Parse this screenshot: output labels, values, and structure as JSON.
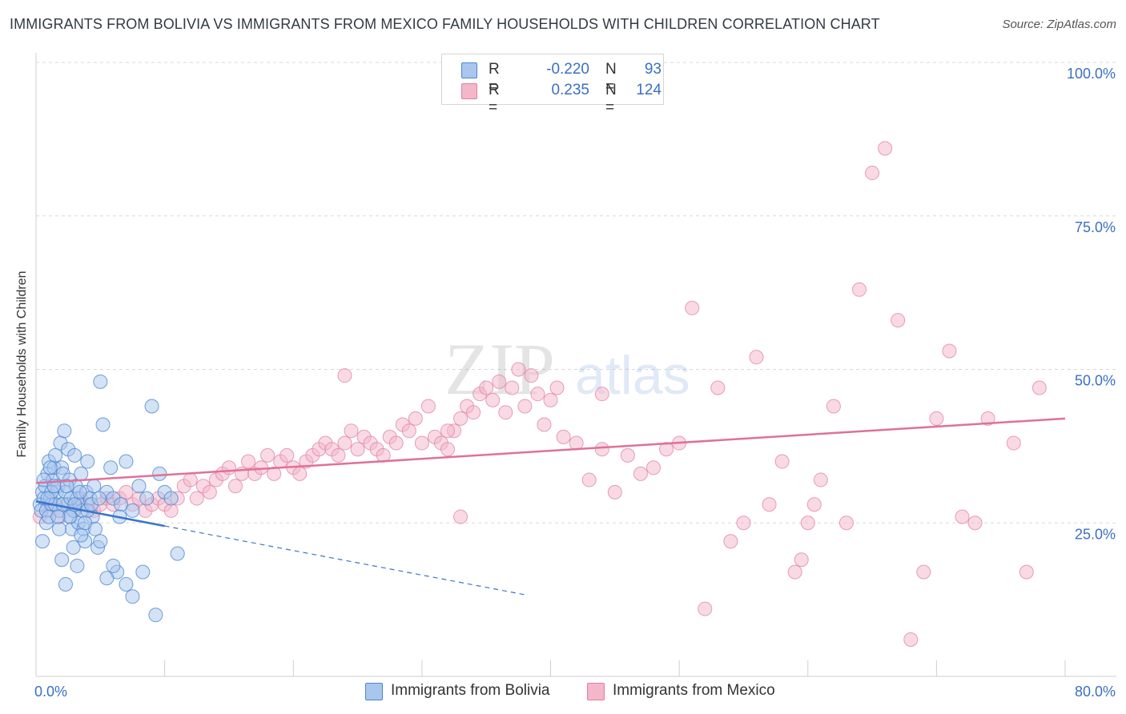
{
  "title": "IMMIGRANTS FROM BOLIVIA VS IMMIGRANTS FROM MEXICO FAMILY HOUSEHOLDS WITH CHILDREN CORRELATION CHART",
  "source": "Source: ZipAtlas.com",
  "watermark": {
    "zip": "ZIP",
    "atlas": "atlas"
  },
  "legend": {
    "bolivia": {
      "r_label": "R =",
      "r_value": "-0.220",
      "n_label": "N =",
      "n_value": "93"
    },
    "mexico": {
      "r_label": "R =",
      "r_value": "0.235",
      "n_label": "N =",
      "n_value": "124"
    }
  },
  "colors": {
    "bolivia_fill": "#a9c6ee",
    "bolivia_stroke": "#4a86d0",
    "bolivia_line": "#3a74cc",
    "mexico_fill": "#f4b6c9",
    "mexico_stroke": "#e07fa0",
    "mexico_line": "#e0709a",
    "tick_label": "#3a6fc4",
    "grid": "#d9d9d9"
  },
  "chart_data": {
    "type": "scatter",
    "title": "IMMIGRANTS FROM BOLIVIA VS IMMIGRANTS FROM MEXICO FAMILY HOUSEHOLDS WITH CHILDREN CORRELATION CHART",
    "xlabel": "",
    "ylabel": "Family Households with Children",
    "xlim": [
      0,
      80
    ],
    "ylim": [
      0,
      100
    ],
    "x_tick_labels": [
      "0.0%",
      "80.0%"
    ],
    "y_ticks": [
      25,
      50,
      75,
      100
    ],
    "y_tick_labels": [
      "25.0%",
      "50.0%",
      "75.0%",
      "100.0%"
    ],
    "legend_bottom": [
      "Immigrants from Bolivia",
      "Immigrants from Mexico"
    ],
    "series": [
      {
        "name": "Immigrants from Bolivia",
        "r": -0.22,
        "n": 93,
        "trend": {
          "x0": 0,
          "y0": 28.5,
          "x1": 10,
          "y1": 24.5,
          "dash_to_x": 38
        },
        "points": [
          [
            0.3,
            28
          ],
          [
            0.4,
            27
          ],
          [
            0.5,
            30
          ],
          [
            0.6,
            29
          ],
          [
            0.7,
            31
          ],
          [
            0.8,
            27
          ],
          [
            0.9,
            33
          ],
          [
            1,
            35
          ],
          [
            1.1,
            29
          ],
          [
            1.2,
            28
          ],
          [
            1.3,
            32
          ],
          [
            1.4,
            34
          ],
          [
            1.5,
            36
          ],
          [
            1.6,
            30
          ],
          [
            1.7,
            31
          ],
          [
            1.8,
            27
          ],
          [
            1.9,
            38
          ],
          [
            2,
            34
          ],
          [
            2.1,
            33
          ],
          [
            2.2,
            40
          ],
          [
            2.3,
            30
          ],
          [
            2.4,
            28
          ],
          [
            2.5,
            37
          ],
          [
            2.6,
            32
          ],
          [
            2.7,
            26
          ],
          [
            2.8,
            24
          ],
          [
            2.9,
            27
          ],
          [
            3,
            36
          ],
          [
            3.1,
            31
          ],
          [
            3.2,
            29
          ],
          [
            3.3,
            25
          ],
          [
            3.4,
            28
          ],
          [
            3.5,
            33
          ],
          [
            3.6,
            27
          ],
          [
            3.7,
            24
          ],
          [
            3.8,
            22
          ],
          [
            3.9,
            30
          ],
          [
            4,
            35
          ],
          [
            4.2,
            29
          ],
          [
            4.4,
            26
          ],
          [
            4.6,
            24
          ],
          [
            4.8,
            21
          ],
          [
            5,
            48
          ],
          [
            5.2,
            41
          ],
          [
            5.5,
            30
          ],
          [
            5.8,
            34
          ],
          [
            6,
            29
          ],
          [
            6.3,
            17
          ],
          [
            6.6,
            28
          ],
          [
            7,
            15
          ],
          [
            7.5,
            13
          ],
          [
            8,
            31
          ],
          [
            8.3,
            17
          ],
          [
            8.6,
            29
          ],
          [
            9,
            44
          ],
          [
            9.3,
            10
          ],
          [
            9.6,
            33
          ],
          [
            10,
            30
          ],
          [
            10.5,
            29
          ],
          [
            11,
            20
          ],
          [
            0.5,
            22
          ],
          [
            0.8,
            25
          ],
          [
            1,
            26
          ],
          [
            1.2,
            30
          ],
          [
            1.5,
            28
          ],
          [
            1.8,
            24
          ],
          [
            2,
            19
          ],
          [
            2.3,
            15
          ],
          [
            2.6,
            26
          ],
          [
            2.9,
            21
          ],
          [
            3.2,
            18
          ],
          [
            3.5,
            23
          ],
          [
            4,
            27
          ],
          [
            4.5,
            31
          ],
          [
            5,
            22
          ],
          [
            5.5,
            16
          ],
          [
            6,
            18
          ],
          [
            6.5,
            26
          ],
          [
            7,
            35
          ],
          [
            7.5,
            27
          ],
          [
            0.6,
            32
          ],
          [
            0.9,
            29
          ],
          [
            1.1,
            34
          ],
          [
            1.4,
            31
          ],
          [
            1.7,
            26
          ],
          [
            2.1,
            28
          ],
          [
            2.4,
            31
          ],
          [
            2.7,
            29
          ],
          [
            3,
            28
          ],
          [
            3.4,
            30
          ],
          [
            3.8,
            25
          ],
          [
            4.3,
            28
          ],
          [
            4.9,
            29
          ]
        ]
      },
      {
        "name": "Immigrants from Mexico",
        "r": 0.235,
        "n": 124,
        "trend": {
          "x0": 0,
          "y0": 31.5,
          "x1": 80,
          "y1": 42
        },
        "points": [
          [
            0.3,
            26
          ],
          [
            0.8,
            27
          ],
          [
            1.2,
            28
          ],
          [
            1.8,
            26
          ],
          [
            2.5,
            28
          ],
          [
            3,
            27
          ],
          [
            3.5,
            29
          ],
          [
            4,
            28
          ],
          [
            4.5,
            27
          ],
          [
            5,
            28
          ],
          [
            5.5,
            29
          ],
          [
            6,
            28
          ],
          [
            6.5,
            29
          ],
          [
            7,
            30
          ],
          [
            7.5,
            28
          ],
          [
            8,
            29
          ],
          [
            8.5,
            27
          ],
          [
            9,
            28
          ],
          [
            9.5,
            29
          ],
          [
            10,
            28
          ],
          [
            10.5,
            27
          ],
          [
            11,
            29
          ],
          [
            11.5,
            31
          ],
          [
            12,
            32
          ],
          [
            12.5,
            29
          ],
          [
            13,
            31
          ],
          [
            13.5,
            30
          ],
          [
            14,
            32
          ],
          [
            14.5,
            33
          ],
          [
            15,
            34
          ],
          [
            15.5,
            31
          ],
          [
            16,
            33
          ],
          [
            16.5,
            35
          ],
          [
            17,
            33
          ],
          [
            17.5,
            34
          ],
          [
            18,
            36
          ],
          [
            18.5,
            33
          ],
          [
            19,
            35
          ],
          [
            19.5,
            36
          ],
          [
            20,
            34
          ],
          [
            20.5,
            33
          ],
          [
            21,
            35
          ],
          [
            21.5,
            36
          ],
          [
            22,
            37
          ],
          [
            22.5,
            38
          ],
          [
            23,
            37
          ],
          [
            23.5,
            36
          ],
          [
            24,
            38
          ],
          [
            24.5,
            40
          ],
          [
            25,
            37
          ],
          [
            25.5,
            39
          ],
          [
            26,
            38
          ],
          [
            26.5,
            37
          ],
          [
            27,
            36
          ],
          [
            27.5,
            39
          ],
          [
            28,
            38
          ],
          [
            28.5,
            41
          ],
          [
            29,
            40
          ],
          [
            29.5,
            42
          ],
          [
            30,
            38
          ],
          [
            30.5,
            44
          ],
          [
            31,
            39
          ],
          [
            31.5,
            38
          ],
          [
            32,
            37
          ],
          [
            32.5,
            40
          ],
          [
            33,
            42
          ],
          [
            33.5,
            44
          ],
          [
            34,
            43
          ],
          [
            34.5,
            46
          ],
          [
            35,
            47
          ],
          [
            35.5,
            45
          ],
          [
            36,
            48
          ],
          [
            36.5,
            43
          ],
          [
            37,
            47
          ],
          [
            37.5,
            50
          ],
          [
            38,
            44
          ],
          [
            38.5,
            49
          ],
          [
            39,
            46
          ],
          [
            39.5,
            41
          ],
          [
            40,
            45
          ],
          [
            40.5,
            47
          ],
          [
            41,
            39
          ],
          [
            42,
            38
          ],
          [
            43,
            32
          ],
          [
            44,
            37
          ],
          [
            45,
            30
          ],
          [
            46,
            36
          ],
          [
            47,
            33
          ],
          [
            48,
            34
          ],
          [
            49,
            37
          ],
          [
            50,
            38
          ],
          [
            51,
            60
          ],
          [
            52,
            11
          ],
          [
            53,
            47
          ],
          [
            54,
            22
          ],
          [
            55,
            25
          ],
          [
            56,
            52
          ],
          [
            57,
            28
          ],
          [
            58,
            35
          ],
          [
            59,
            17
          ],
          [
            59.5,
            19
          ],
          [
            60,
            25
          ],
          [
            60.5,
            28
          ],
          [
            61,
            32
          ],
          [
            62,
            44
          ],
          [
            63,
            25
          ],
          [
            64,
            63
          ],
          [
            65,
            82
          ],
          [
            66,
            86
          ],
          [
            67,
            58
          ],
          [
            68,
            6
          ],
          [
            69,
            17
          ],
          [
            70,
            42
          ],
          [
            71,
            53
          ],
          [
            72,
            26
          ],
          [
            73,
            25
          ],
          [
            74,
            42
          ],
          [
            76,
            38
          ],
          [
            77,
            17
          ],
          [
            78,
            47
          ],
          [
            24,
            49
          ],
          [
            32,
            40
          ],
          [
            44,
            46
          ],
          [
            33,
            26
          ]
        ]
      }
    ]
  }
}
